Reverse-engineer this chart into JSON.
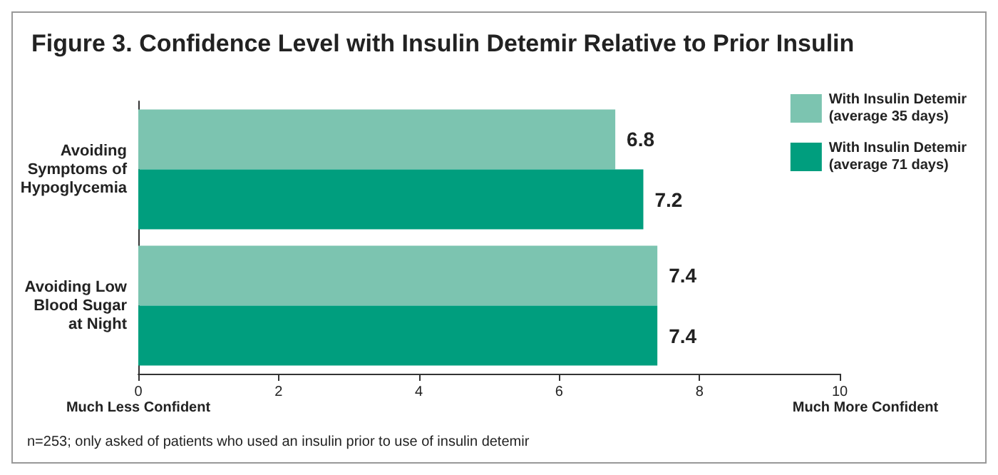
{
  "chart_data": {
    "type": "bar",
    "orientation": "horizontal",
    "title": "Figure 3. Confidence Level with Insulin Detemir Relative to Prior Insulin",
    "categories": [
      "Avoiding Symptoms of Hypoglycemia",
      "Avoiding Low Blood Sugar at Night"
    ],
    "series": [
      {
        "name": "With Insulin Detemir (average 35 days)",
        "color": "#7cc4b0",
        "values": [
          6.8,
          7.4
        ]
      },
      {
        "name": "With Insulin Detemir (average 71 days)",
        "color": "#009e7e",
        "values": [
          7.2,
          7.4
        ]
      }
    ],
    "xlim": [
      0,
      10
    ],
    "xticks": [
      0,
      2,
      4,
      6,
      8,
      10
    ],
    "data_labels": true,
    "grid": false,
    "legend": "top right",
    "annotations": [
      "Much Less Confident",
      "Much More Confident",
      "n=253; only asked of patients who used an insulin prior to use of insulin detemir"
    ]
  }
}
